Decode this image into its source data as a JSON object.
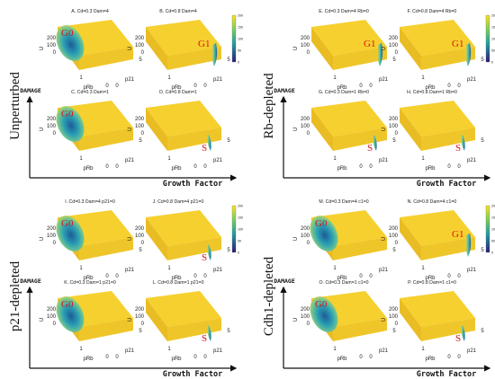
{
  "colors": {
    "surface_top": "#f6d02e",
    "surface_side": "#e9bc24",
    "valley_dark": "#1f5a96",
    "valley_mid": "#2aa0b4",
    "valley_light": "#7cc98a",
    "state_label": "#d8141a",
    "axis": "#111111"
  },
  "colorbar_ticks": [
    "200",
    "150",
    "100",
    "50",
    "0"
  ],
  "axis_text": {
    "u": "U",
    "prb": "pRb",
    "p21": "p21",
    "z_ticks": [
      "200",
      "100",
      "0"
    ],
    "prb_ticks": [
      "1",
      "0"
    ],
    "p21_ticks": [
      "0",
      "5"
    ]
  },
  "groups": [
    {
      "id": "unperturbed",
      "side_label": "Unperturbed",
      "damage_label": "DAMAGE",
      "growth_label": "Growth Factor",
      "panels": [
        {
          "title": "A. Cd=0.3 Dam=4",
          "state": "G0",
          "valley": "g0"
        },
        {
          "title": "B. Cd=0.8 Dam=4",
          "state": "G1",
          "valley": "g1"
        },
        {
          "title": "C. Cd=0.3 Dam=1",
          "state": "G0",
          "valley": "g0"
        },
        {
          "title": "D. Cd=0.8 Dam=1",
          "state": "S",
          "valley": "s"
        }
      ]
    },
    {
      "id": "rb-depleted",
      "side_label": "Rb-depleted",
      "damage_label": "DAMAGE",
      "growth_label": "Growth Factor",
      "panels": [
        {
          "title": "E. Cd=0.3 Dam=4 Rb=0",
          "state": "G1",
          "valley": "g1"
        },
        {
          "title": "F. Cd=0.8 Dam=4 Rb=0",
          "state": "G1",
          "valley": "g1"
        },
        {
          "title": "G. Cd=0.3 Dam=1 Rb=0",
          "state": "S",
          "valley": "s"
        },
        {
          "title": "H. Cd=0.8 Dam=1 Rb=0",
          "state": "S",
          "valley": "s"
        }
      ]
    },
    {
      "id": "p21-depleted",
      "side_label": "p21-depleted",
      "damage_label": "DAMAGE",
      "growth_label": "Growth Factor",
      "panels": [
        {
          "title": "I. Cd=0.3 Dam=4 p21=0",
          "state": "G0",
          "valley": "g0"
        },
        {
          "title": "J. Cd=0.8 Dam=4 p21=0",
          "state": "S",
          "valley": "s"
        },
        {
          "title": "K. Cd=0.3 Dam=1 p21=0",
          "state": "G0",
          "valley": "g0"
        },
        {
          "title": "L. Cd=0.8 Dam=1 p21=0",
          "state": "S",
          "valley": "s"
        }
      ]
    },
    {
      "id": "cdh1-depleted",
      "side_label": "Cdh1-depleted",
      "damage_label": "DAMAGE",
      "growth_label": "Growth Factor",
      "panels": [
        {
          "title": "M. Cd=0.3 Dam=4 c1=0",
          "state": "G0",
          "valley": "g0"
        },
        {
          "title": "N. Cd=0.8 Dam=4 c1=0",
          "state": "G1",
          "valley": "g1"
        },
        {
          "title": "O. Cd=0.3 Dam=1 c1=0",
          "state": "G0",
          "valley": "g0"
        },
        {
          "title": "P. Cd=0.8 Dam=1 c1=0",
          "state": "S",
          "valley": "s"
        }
      ]
    }
  ]
}
